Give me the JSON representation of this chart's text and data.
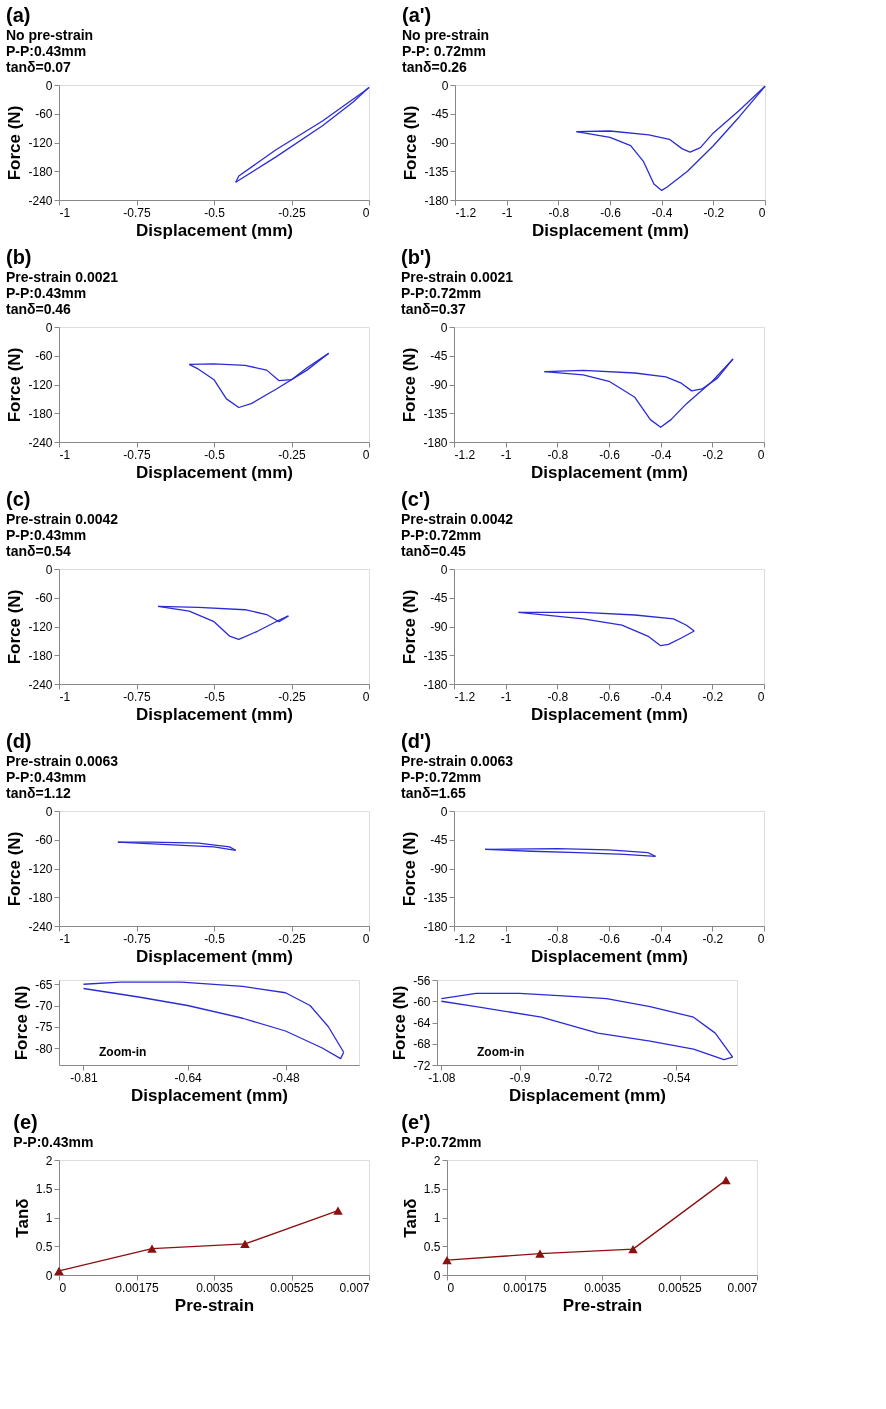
{
  "chart_data": [
    {
      "type": "line",
      "title": "(a)",
      "annotations": [
        "No pre-strain",
        "P-P:0.43mm",
        "tanδ=0.07"
      ],
      "xlabel": "Displacement (mm)",
      "ylabel": "Force (N)",
      "xlim": [
        -1,
        0
      ],
      "ylim": [
        -240,
        0
      ],
      "xticks": [
        -1,
        -0.75,
        -0.5,
        -0.25,
        0
      ],
      "yticks": [
        -240,
        -180,
        -120,
        -60,
        0
      ],
      "grid": false,
      "series": [
        {
          "color": "#2b2bd6",
          "x": [
            -0.43,
            -0.3,
            -0.15,
            -0.05,
            0
          ],
          "values": [
            -203,
            -150,
            -85,
            -35,
            -5
          ]
        },
        {
          "color": "#2b2bd6",
          "x": [
            -0.43,
            -0.42,
            -0.3,
            -0.15,
            -0.02,
            0
          ],
          "values": [
            -203,
            -190,
            -135,
            -75,
            -15,
            -5
          ]
        }
      ]
    },
    {
      "type": "line",
      "title": "(a')",
      "annotations": [
        "No pre-strain",
        "P-P: 0.72mm",
        "tanδ=0.26"
      ],
      "xlabel": "Displacement (mm)",
      "ylabel": "Force (N)",
      "xlim": [
        -1.2,
        0
      ],
      "ylim": [
        -180,
        0
      ],
      "xticks": [
        -1.2,
        -1,
        -0.8,
        -0.6,
        -0.4,
        -0.2,
        0
      ],
      "yticks": [
        -180,
        -135,
        -90,
        -45,
        0
      ],
      "grid": false,
      "series": [
        {
          "color": "#2b2bd6",
          "x": [
            -0.73,
            -0.6,
            -0.52,
            -0.47,
            -0.43,
            -0.4,
            -0.38,
            -0.3,
            -0.2,
            -0.1,
            0
          ],
          "values": [
            -73,
            -82,
            -95,
            -120,
            -155,
            -165,
            -160,
            -135,
            -95,
            -50,
            -2
          ]
        },
        {
          "color": "#2b2bd6",
          "x": [
            -0.73,
            -0.6,
            -0.45,
            -0.37,
            -0.32,
            -0.29,
            -0.25,
            -0.2,
            -0.1,
            0
          ],
          "values": [
            -73,
            -72,
            -78,
            -85,
            -100,
            -105,
            -98,
            -75,
            -40,
            -2
          ]
        }
      ]
    },
    {
      "type": "line",
      "title": "(b)",
      "annotations": [
        "Pre-strain 0.0021",
        "P-P:0.43mm",
        "tanδ=0.46"
      ],
      "xlabel": "Displacement (mm)",
      "ylabel": "Force (N)",
      "xlim": [
        -1,
        0
      ],
      "ylim": [
        -240,
        0
      ],
      "xticks": [
        -1,
        -0.75,
        -0.5,
        -0.25,
        0
      ],
      "yticks": [
        -240,
        -180,
        -120,
        -60,
        0
      ],
      "grid": false,
      "series": [
        {
          "color": "#2b2bd6",
          "x": [
            -0.58,
            -0.55,
            -0.5,
            -0.46,
            -0.42,
            -0.38,
            -0.3,
            -0.2,
            -0.13
          ],
          "values": [
            -78,
            -88,
            -110,
            -150,
            -168,
            -160,
            -130,
            -90,
            -55
          ]
        },
        {
          "color": "#2b2bd6",
          "x": [
            -0.58,
            -0.5,
            -0.4,
            -0.33,
            -0.29,
            -0.25,
            -0.2,
            -0.13
          ],
          "values": [
            -78,
            -77,
            -80,
            -90,
            -112,
            -110,
            -85,
            -55
          ]
        }
      ]
    },
    {
      "type": "line",
      "title": "(b')",
      "annotations": [
        "Pre-strain 0.0021",
        "P-P:0.72mm",
        "tanδ=0.37"
      ],
      "xlabel": "Displacement (mm)",
      "ylabel": "Force (N)",
      "xlim": [
        -1.2,
        0
      ],
      "ylim": [
        -180,
        0
      ],
      "xticks": [
        -1.2,
        -1,
        -0.8,
        -0.6,
        -0.4,
        -0.2,
        0
      ],
      "yticks": [
        -180,
        -135,
        -90,
        -45,
        0
      ],
      "grid": false,
      "series": [
        {
          "color": "#2b2bd6",
          "x": [
            -0.85,
            -0.7,
            -0.6,
            -0.5,
            -0.44,
            -0.4,
            -0.36,
            -0.3,
            -0.2,
            -0.12
          ],
          "values": [
            -70,
            -75,
            -85,
            -110,
            -145,
            -157,
            -145,
            -120,
            -85,
            -50
          ]
        },
        {
          "color": "#2b2bd6",
          "x": [
            -0.85,
            -0.7,
            -0.5,
            -0.38,
            -0.32,
            -0.28,
            -0.24,
            -0.18,
            -0.12
          ],
          "values": [
            -70,
            -68,
            -72,
            -78,
            -88,
            -100,
            -97,
            -80,
            -50
          ]
        }
      ]
    },
    {
      "type": "line",
      "title": "(c)",
      "annotations": [
        "Pre-strain 0.0042",
        "P-P:0.43mm",
        "tanδ=0.54"
      ],
      "xlabel": "Displacement (mm)",
      "ylabel": "Force (N)",
      "xlim": [
        -1,
        0
      ],
      "ylim": [
        -240,
        0
      ],
      "xticks": [
        -1,
        -0.75,
        -0.5,
        -0.25,
        0
      ],
      "yticks": [
        -240,
        -180,
        -120,
        -60,
        0
      ],
      "grid": false,
      "series": [
        {
          "color": "#2b2bd6",
          "x": [
            -0.68,
            -0.58,
            -0.5,
            -0.45,
            -0.42,
            -0.36,
            -0.3,
            -0.26
          ],
          "values": [
            -78,
            -88,
            -110,
            -140,
            -147,
            -130,
            -110,
            -98
          ]
        },
        {
          "color": "#2b2bd6",
          "x": [
            -0.68,
            -0.55,
            -0.4,
            -0.33,
            -0.29,
            -0.26
          ],
          "values": [
            -78,
            -80,
            -85,
            -95,
            -110,
            -98
          ]
        }
      ]
    },
    {
      "type": "line",
      "title": "(c')",
      "annotations": [
        "Pre-strain 0.0042",
        "P-P:0.72mm",
        "tanδ=0.45"
      ],
      "xlabel": "Displacement (mm)",
      "ylabel": "Force (N)",
      "xlim": [
        -1.2,
        0
      ],
      "ylim": [
        -180,
        0
      ],
      "xticks": [
        -1.2,
        -1,
        -0.8,
        -0.6,
        -0.4,
        -0.2,
        0
      ],
      "yticks": [
        -180,
        -135,
        -90,
        -45,
        0
      ],
      "grid": false,
      "series": [
        {
          "color": "#2b2bd6",
          "x": [
            -0.95,
            -0.7,
            -0.55,
            -0.45,
            -0.4,
            -0.37,
            -0.32,
            -0.27
          ],
          "values": [
            -68,
            -78,
            -88,
            -105,
            -120,
            -118,
            -108,
            -97
          ]
        },
        {
          "color": "#2b2bd6",
          "x": [
            -0.95,
            -0.7,
            -0.5,
            -0.35,
            -0.3,
            -0.27
          ],
          "values": [
            -68,
            -68,
            -72,
            -78,
            -88,
            -97
          ]
        }
      ]
    },
    {
      "type": "line",
      "title": "(d)",
      "annotations": [
        "Pre-strain 0.0063",
        "P-P:0.43mm",
        "tanδ=1.12"
      ],
      "xlabel": "Displacement (mm)",
      "ylabel": "Force (N)",
      "xlim": [
        -1,
        0
      ],
      "ylim": [
        -240,
        0
      ],
      "xticks": [
        -1,
        -0.75,
        -0.5,
        -0.25,
        0
      ],
      "yticks": [
        -240,
        -180,
        -120,
        -60,
        0
      ],
      "grid": false,
      "series": [
        {
          "color": "#2b2bd6",
          "x": [
            -0.81,
            -0.65,
            -0.5,
            -0.43
          ],
          "values": [
            -65,
            -70,
            -75,
            -82
          ]
        },
        {
          "color": "#2b2bd6",
          "x": [
            -0.81,
            -0.7,
            -0.55,
            -0.45,
            -0.43
          ],
          "values": [
            -65,
            -65,
            -67,
            -75,
            -82
          ]
        }
      ]
    },
    {
      "type": "line",
      "title": "(d')",
      "annotations": [
        "Pre-strain 0.0063",
        "P-P:0.72mm",
        "tanδ=1.65"
      ],
      "xlabel": "Displacement (mm)",
      "ylabel": "Force (N)",
      "xlim": [
        -1.2,
        0
      ],
      "ylim": [
        -180,
        0
      ],
      "xticks": [
        -1.2,
        -1,
        -0.8,
        -0.6,
        -0.4,
        -0.2,
        0
      ],
      "yticks": [
        -180,
        -135,
        -90,
        -45,
        0
      ],
      "grid": false,
      "series": [
        {
          "color": "#2b2bd6",
          "x": [
            -1.08,
            -0.9,
            -0.72,
            -0.54,
            -0.42
          ],
          "values": [
            -60,
            -63,
            -65,
            -68,
            -71
          ]
        },
        {
          "color": "#2b2bd6",
          "x": [
            -1.08,
            -0.8,
            -0.6,
            -0.45,
            -0.42
          ],
          "values": [
            -60,
            -59,
            -61,
            -65,
            -71
          ]
        }
      ]
    },
    {
      "type": "line",
      "annotations": [
        "Zoom-in"
      ],
      "xlabel": "Displacement (mm)",
      "ylabel": "Force (N)",
      "xlim": [
        -0.85,
        -0.36
      ],
      "ylim": [
        -84,
        -64
      ],
      "xticks": [
        -0.81,
        -0.64,
        -0.48
      ],
      "yticks": [
        -80,
        -75,
        -70,
        -65
      ],
      "grid": false,
      "series": [
        {
          "color": "#2b2bd6",
          "x": [
            -0.81,
            -0.75,
            -0.65,
            -0.55,
            -0.48,
            -0.44,
            -0.41,
            -0.385
          ],
          "values": [
            -65,
            -64.5,
            -64.5,
            -65.5,
            -67,
            -70,
            -75,
            -81
          ]
        },
        {
          "color": "#2b2bd6",
          "x": [
            -0.81,
            -0.72,
            -0.64,
            -0.55,
            -0.48,
            -0.42,
            -0.39,
            -0.385
          ],
          "values": [
            -66,
            -68,
            -70,
            -73,
            -76,
            -80,
            -82.5,
            -81
          ]
        }
      ]
    },
    {
      "type": "line",
      "annotations": [
        "Zoom-in"
      ],
      "xlabel": "Displacement (mm)",
      "ylabel": "Force (N)",
      "xlim": [
        -1.09,
        -0.4
      ],
      "ylim": [
        -72,
        -56
      ],
      "xticks": [
        -1.08,
        -0.9,
        -0.72,
        -0.54
      ],
      "yticks": [
        -72,
        -68,
        -64,
        -60,
        -56
      ],
      "grid": false,
      "series": [
        {
          "color": "#2b2bd6",
          "x": [
            -1.08,
            -1.0,
            -0.9,
            -0.8,
            -0.7,
            -0.6,
            -0.5,
            -0.45,
            -0.41
          ],
          "values": [
            -59.5,
            -58.5,
            -58.5,
            -59,
            -59.5,
            -61,
            -63,
            -66,
            -70.5
          ]
        },
        {
          "color": "#2b2bd6",
          "x": [
            -1.08,
            -1.0,
            -0.85,
            -0.72,
            -0.6,
            -0.5,
            -0.43,
            -0.41
          ],
          "values": [
            -60,
            -61,
            -63,
            -66,
            -67.5,
            -69,
            -71,
            -70.5
          ]
        }
      ]
    },
    {
      "type": "line",
      "title": "(e)",
      "annotations": [
        "P-P:0.43mm"
      ],
      "xlabel": "Pre-strain",
      "ylabel": "Tanδ",
      "xlim": [
        0,
        0.007
      ],
      "ylim": [
        0,
        2
      ],
      "xticks": [
        0,
        0.00175,
        0.0035,
        0.00525,
        0.007
      ],
      "yticks": [
        0,
        0.5,
        1,
        1.5,
        2
      ],
      "grid": false,
      "marker": "triangle",
      "series": [
        {
          "color": "#8b1010",
          "x": [
            0,
            0.0021,
            0.0042,
            0.0063
          ],
          "values": [
            0.07,
            0.46,
            0.54,
            1.12
          ]
        }
      ]
    },
    {
      "type": "line",
      "title": "(e')",
      "annotations": [
        "P-P:0.72mm"
      ],
      "xlabel": "Pre-strain",
      "ylabel": "Tanδ",
      "xlim": [
        0,
        0.007
      ],
      "ylim": [
        0,
        2
      ],
      "xticks": [
        0,
        0.00175,
        0.0035,
        0.00525,
        0.007
      ],
      "yticks": [
        0,
        0.5,
        1,
        1.5,
        2
      ],
      "grid": false,
      "marker": "triangle",
      "series": [
        {
          "color": "#8b1010",
          "x": [
            0,
            0.0021,
            0.0042,
            0.0063
          ],
          "values": [
            0.26,
            0.37,
            0.45,
            1.65
          ]
        }
      ]
    }
  ]
}
